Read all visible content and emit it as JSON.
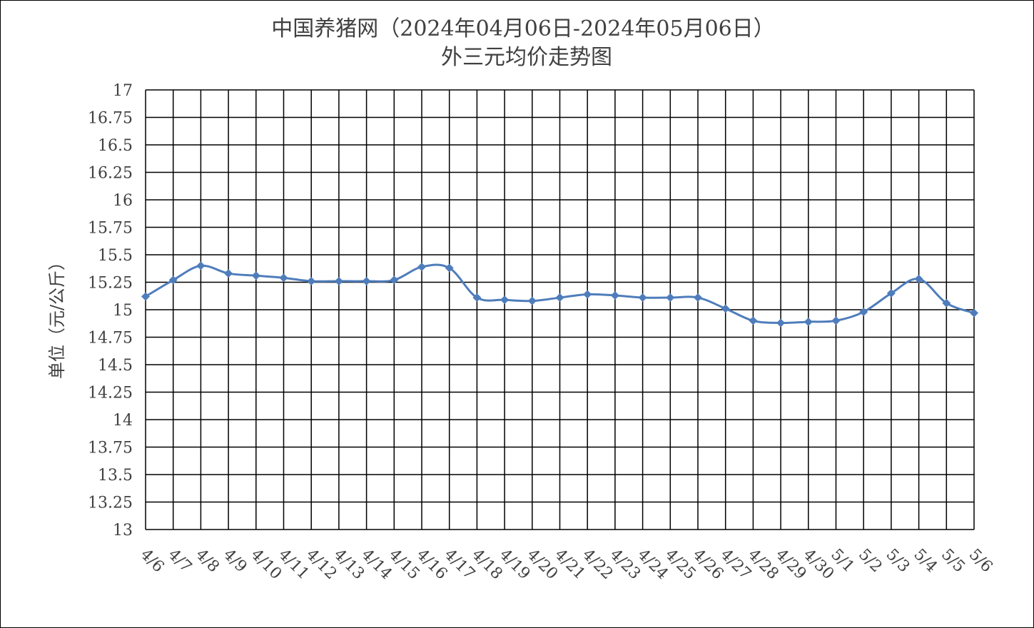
{
  "colors": {
    "series": "#4f7dbb",
    "grid": "#000000",
    "text": "#404040",
    "background": "#ffffff"
  },
  "chart_data": {
    "type": "line",
    "title": "中国养猪网（2024年04月06日-2024年05月06日）",
    "subtitle": "外三元均价走势图",
    "xlabel": "",
    "ylabel": "单位（元/公斤）",
    "ylim": [
      13,
      17
    ],
    "ytick_step": 0.25,
    "yticks": [
      "17",
      "16.75",
      "16.5",
      "16.25",
      "16",
      "15.75",
      "15.5",
      "15.25",
      "15",
      "14.75",
      "14.5",
      "14.25",
      "14",
      "13.75",
      "13.5",
      "13.25",
      "13"
    ],
    "grid": true,
    "legend": "none",
    "x": [
      "4/6",
      "4/7",
      "4/8",
      "4/9",
      "4/10",
      "4/11",
      "4/12",
      "4/13",
      "4/14",
      "4/15",
      "4/16",
      "4/17",
      "4/18",
      "4/19",
      "4/20",
      "4/21",
      "4/22",
      "4/23",
      "4/24",
      "4/25",
      "4/26",
      "4/27",
      "4/28",
      "4/29",
      "4/30",
      "5/1",
      "5/2",
      "5/3",
      "5/4",
      "5/5",
      "5/6"
    ],
    "series": [
      {
        "values": [
          15.12,
          15.27,
          15.4,
          15.33,
          15.31,
          15.29,
          15.26,
          15.26,
          15.26,
          15.27,
          15.39,
          15.38,
          15.11,
          15.09,
          15.08,
          15.11,
          15.14,
          15.13,
          15.11,
          15.11,
          15.11,
          15.01,
          14.9,
          14.88,
          14.89,
          14.9,
          14.98,
          15.15,
          15.28,
          15.06,
          14.97
        ]
      }
    ]
  }
}
